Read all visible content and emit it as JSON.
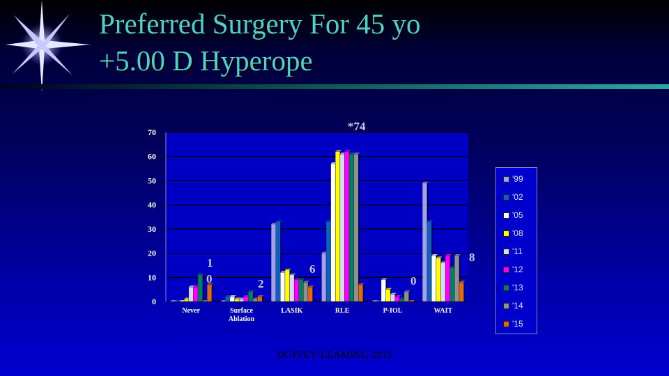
{
  "slide": {
    "title_line1": "Preferred Surgery For 45 yo",
    "title_line2": "+5.00 D  Hyperope",
    "footer": "DUFFEY/LEAMING 2015"
  },
  "callouts": [
    {
      "text": "*74"
    },
    {
      "text": "1"
    },
    {
      "text": "0"
    },
    {
      "text": "2"
    },
    {
      "text": "6"
    },
    {
      "text": "0"
    },
    {
      "text": "8"
    }
  ],
  "chart_data": {
    "type": "bar",
    "categories": [
      "Never",
      "Surface Ablation",
      "LASIK",
      "RLE",
      "P-IOL",
      "WAIT"
    ],
    "ylim": [
      0,
      70
    ],
    "yticks": [
      "0",
      "10",
      "20",
      "30",
      "40",
      "50",
      "60",
      "70"
    ],
    "legend_position": "right",
    "series": [
      {
        "name": "'99",
        "color": "#a0a0f0",
        "values": [
          0,
          0,
          32,
          20,
          0,
          49
        ]
      },
      {
        "name": "'02",
        "color": "#1060c0",
        "values": [
          0,
          2,
          33,
          33,
          0,
          33
        ]
      },
      {
        "name": "'05",
        "color": "#ffffff",
        "values": [
          0,
          2,
          12,
          57,
          9,
          19
        ]
      },
      {
        "name": "'08",
        "color": "#ffff00",
        "values": [
          1,
          1,
          13,
          62,
          5,
          18
        ]
      },
      {
        "name": "'11",
        "color": "#d8d8ff",
        "values": [
          6,
          1,
          11,
          61,
          3,
          16
        ]
      },
      {
        "name": "'12",
        "color": "#ff00ff",
        "values": [
          6,
          2,
          9,
          62,
          2,
          19
        ]
      },
      {
        "name": "'13",
        "color": "#008060",
        "values": [
          11,
          4,
          9,
          61,
          1,
          14
        ]
      },
      {
        "name": "'14",
        "color": "#909090",
        "values": [
          0,
          1,
          8,
          61,
          4,
          19
        ]
      },
      {
        "name": "'15",
        "color": "#e06a10",
        "values": [
          7,
          2,
          6,
          7,
          0,
          8
        ]
      }
    ]
  }
}
